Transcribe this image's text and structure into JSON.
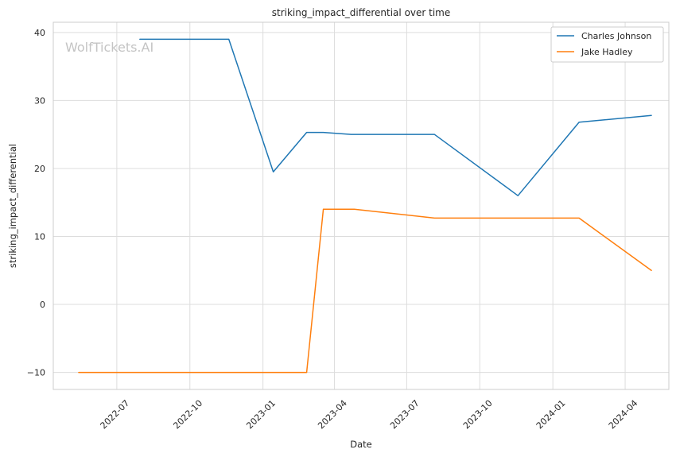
{
  "chart_data": {
    "type": "line",
    "title": "striking_impact_differential over time",
    "xlabel": "Date",
    "ylabel": "striking_impact_differential",
    "watermark": "WolfTickets.AI",
    "x_tick_labels": [
      "2022-07",
      "2022-10",
      "2023-01",
      "2023-04",
      "2023-07",
      "2023-10",
      "2024-01",
      "2024-04"
    ],
    "x_ticks": [
      "2022-07-01",
      "2022-10-01",
      "2023-01-01",
      "2023-04-01",
      "2023-07-01",
      "2023-10-01",
      "2024-01-01",
      "2024-04-01"
    ],
    "y_ticks": [
      -10,
      0,
      10,
      20,
      30,
      40
    ],
    "y_tick_labels": [
      "−10",
      "0",
      "10",
      "20",
      "30",
      "40"
    ],
    "xlim": [
      "2022-04-12",
      "2024-05-26"
    ],
    "ylim": [
      -12.5,
      41.5
    ],
    "grid": true,
    "legend_position": "top-right",
    "series": [
      {
        "name": "Charles Johnson",
        "color": "#1f77b4",
        "points": [
          {
            "x": "2022-07-30",
            "y": 39
          },
          {
            "x": "2022-11-19",
            "y": 39
          },
          {
            "x": "2023-01-14",
            "y": 19.5
          },
          {
            "x": "2023-02-25",
            "y": 25.3
          },
          {
            "x": "2023-03-18",
            "y": 25.3
          },
          {
            "x": "2023-04-22",
            "y": 25
          },
          {
            "x": "2023-08-05",
            "y": 25
          },
          {
            "x": "2023-11-18",
            "y": 16
          },
          {
            "x": "2024-02-03",
            "y": 26.8
          },
          {
            "x": "2024-05-04",
            "y": 27.8
          }
        ]
      },
      {
        "name": "Jake Hadley",
        "color": "#ff7f0e",
        "points": [
          {
            "x": "2022-05-14",
            "y": -10
          },
          {
            "x": "2023-02-25",
            "y": -10
          },
          {
            "x": "2023-03-18",
            "y": 14
          },
          {
            "x": "2023-04-26",
            "y": 14
          },
          {
            "x": "2023-08-05",
            "y": 12.7
          },
          {
            "x": "2024-02-03",
            "y": 12.7
          },
          {
            "x": "2024-05-04",
            "y": 5
          }
        ]
      }
    ]
  }
}
